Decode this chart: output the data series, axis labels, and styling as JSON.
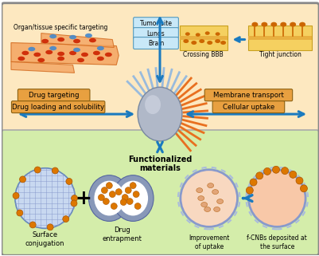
{
  "bg_top_color": "#fde8c0",
  "bg_bottom_color": "#d4edaa",
  "title": "Functionalized\nmaterials",
  "label_tumor": "Tumor site",
  "label_lungs": "Lungs",
  "label_brain": "Brain",
  "label_crossing": "Crossing BBB",
  "label_tight": "Tight junction",
  "label_membrane": "Membrane transport",
  "label_drug_target": "Drug targeting",
  "label_drug_load": "Drug loading and solubility",
  "label_cellular": "Cellular uptake",
  "label_surface": "Surface\nconjugation",
  "label_drug_ent": "Drug\nentrapment",
  "label_improve": "Improvement\nof uptake",
  "label_fcnbs": "f-CNBs deposited at\nthe surface",
  "label_organ": "Organ/tissue specific targeting",
  "arrow_color": "#1a7abf",
  "box_fill": "#e8a040",
  "box_edge": "#8B6010"
}
